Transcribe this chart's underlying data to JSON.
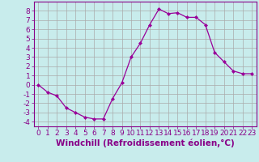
{
  "hours": [
    0,
    1,
    2,
    3,
    4,
    5,
    6,
    7,
    8,
    9,
    10,
    11,
    12,
    13,
    14,
    15,
    16,
    17,
    18,
    19,
    20,
    21,
    22,
    23
  ],
  "windchill": [
    0,
    -0.8,
    -1.2,
    -2.5,
    -3.0,
    -3.5,
    -3.7,
    -3.7,
    -1.5,
    0.2,
    3.0,
    4.5,
    6.5,
    8.2,
    7.7,
    7.8,
    7.3,
    7.3,
    6.5,
    3.5,
    2.5,
    1.5,
    1.2,
    1.2
  ],
  "line_color": "#990099",
  "marker": "D",
  "marker_size": 2,
  "background_color": "#c8ecec",
  "grid_color": "#aaaaaa",
  "xlabel": "Windchill (Refroidissement éolien,°C)",
  "xlabel_fontsize": 7.5,
  "ylim": [
    -4.5,
    9
  ],
  "xlim": [
    -0.5,
    23.5
  ],
  "yticks": [
    -4,
    -3,
    -2,
    -1,
    0,
    1,
    2,
    3,
    4,
    5,
    6,
    7,
    8
  ],
  "xticks": [
    0,
    1,
    2,
    3,
    4,
    5,
    6,
    7,
    8,
    9,
    10,
    11,
    12,
    13,
    14,
    15,
    16,
    17,
    18,
    19,
    20,
    21,
    22,
    23
  ],
  "tick_fontsize": 6.5,
  "spine_color": "#880088"
}
